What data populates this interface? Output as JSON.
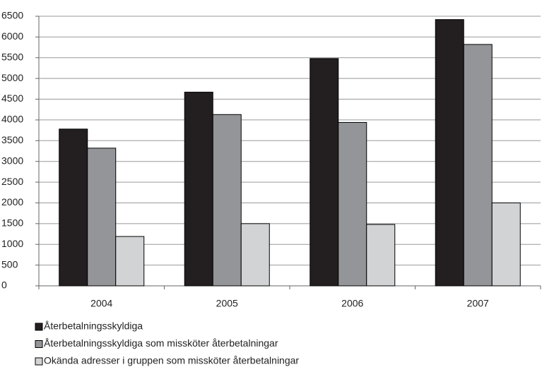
{
  "chart_data": {
    "type": "bar",
    "categories": [
      "2004",
      "2005",
      "2006",
      "2007"
    ],
    "series": [
      {
        "name": "Återbetalningsskyldiga",
        "color": "#231f20",
        "values": [
          3780,
          4670,
          5480,
          6420
        ]
      },
      {
        "name": "Återbetalningsskyldiga som missköter återbetalningar",
        "color": "#939598",
        "values": [
          3320,
          4130,
          3940,
          5820
        ]
      },
      {
        "name": "Okända adresser i gruppen som missköter återbetalningar",
        "color": "#d1d3d4",
        "values": [
          1190,
          1500,
          1480,
          2000
        ]
      }
    ],
    "ylim": [
      0,
      6500
    ],
    "yticks": [
      0,
      500,
      1000,
      1500,
      2000,
      2500,
      3000,
      3500,
      4000,
      4500,
      5000,
      5500,
      6000,
      6500
    ],
    "grid": true,
    "legend": "bottom"
  }
}
